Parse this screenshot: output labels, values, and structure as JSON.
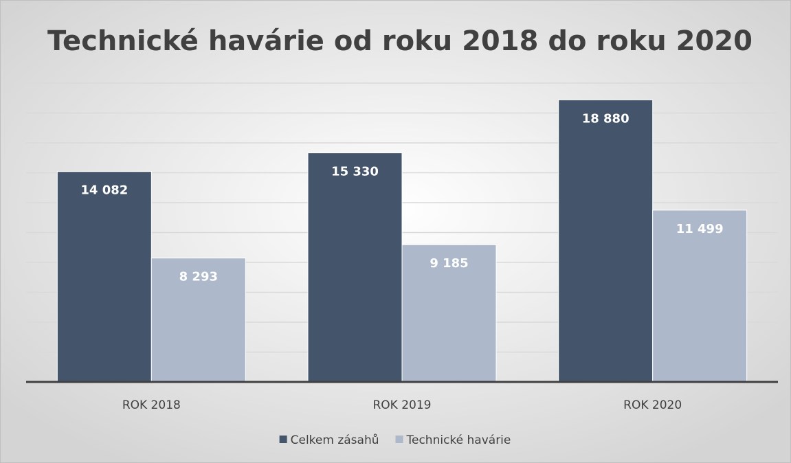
{
  "chart_data": {
    "type": "bar",
    "title": "Technické havárie od roku 2018 do roku 2020",
    "categories": [
      "ROK 2018",
      "ROK 2019",
      "ROK 2020"
    ],
    "series": [
      {
        "name": "Celkem zásahů",
        "color": "#44546a",
        "values": [
          14082,
          15330,
          18880
        ],
        "value_labels": [
          "14 082",
          "15 330",
          "18 880"
        ]
      },
      {
        "name": "Technické havárie",
        "color": "#adb9ca",
        "values": [
          8293,
          9185,
          11499
        ],
        "value_labels": [
          "8 293",
          "9 185",
          "11 499"
        ]
      }
    ],
    "ylim": [
      0,
      20000
    ],
    "yticks": [
      0,
      2000,
      4000,
      6000,
      8000,
      10000,
      12000,
      14000,
      16000,
      18000,
      20000
    ],
    "grid": true,
    "legend": "bottom"
  }
}
